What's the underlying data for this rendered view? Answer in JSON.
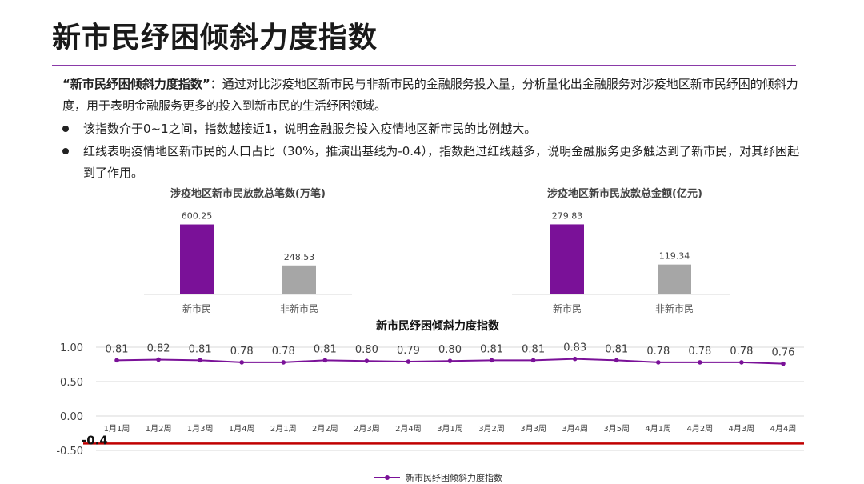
{
  "page": {
    "title": "新市民纾困倾斜力度指数",
    "intro_lead": "“新市民纾困倾斜力度指数”",
    "intro_rest": "：通过对比涉疫地区新市民与非新市民的金融服务投入量，分析量化出金融服务对涉疫地区新市民纾困的倾斜力度，用于表明金融服务更多的投入到新市民的生活纾困领域。",
    "bullets": [
      "该指数介于0~1之间，指数越接近1，说明金融服务投入疫情地区新市民的比例越大。",
      "红线表明疫情地区新市民的人口占比（30%，推演出基线为-0.4），指数超过红线越多，说明金融服务更多触达到了新市民，对其纾困起到了作用。"
    ]
  },
  "colors": {
    "accent_purple": "#7a1198",
    "bar_gray": "#a6a6a6",
    "line_purple": "#7a1198",
    "baseline_red": "#c00000",
    "title_rule": "#8a3aa8"
  },
  "chart_data": [
    {
      "type": "bar",
      "title": "涉疫地区新市民放款总笔数(万笔)",
      "categories": [
        "新市民",
        "非新市民"
      ],
      "values": [
        600.25,
        248.53
      ],
      "value_labels": [
        "600.25",
        "248.53"
      ],
      "ylim": [
        0,
        700
      ],
      "grid": false
    },
    {
      "type": "bar",
      "title": "涉疫地区新市民放款总金额(亿元)",
      "categories": [
        "新市民",
        "非新市民"
      ],
      "values": [
        279.83,
        119.34
      ],
      "value_labels": [
        "279.83",
        "119.34"
      ],
      "ylim": [
        0,
        326
      ],
      "grid": false
    },
    {
      "type": "line",
      "title": "新市民纾困倾斜力度指数",
      "categories": [
        "1月1周",
        "1月2周",
        "1月3周",
        "1月4周",
        "2月1周",
        "2月2周",
        "2月3周",
        "2月4周",
        "3月1周",
        "3月2周",
        "3月3周",
        "3月4周",
        "3月5周",
        "4月1周",
        "4月2周",
        "4月3周",
        "4月4周"
      ],
      "series": [
        {
          "name": "新市民纾困倾斜力度指数",
          "values": [
            0.81,
            0.82,
            0.81,
            0.78,
            0.78,
            0.81,
            0.8,
            0.79,
            0.8,
            0.81,
            0.81,
            0.83,
            0.81,
            0.78,
            0.78,
            0.78,
            0.76
          ],
          "value_labels": [
            "0.81",
            "0.82",
            "0.81",
            "0.78",
            "0.78",
            "0.81",
            "0.80",
            "0.79",
            "0.80",
            "0.81",
            "0.81",
            "0.83",
            "0.81",
            "0.78",
            "0.78",
            "0.78",
            "0.76"
          ]
        }
      ],
      "yticks": [
        "1.00",
        "0.50",
        "0.00",
        "-0.50"
      ],
      "ytick_values": [
        1.0,
        0.5,
        0.0,
        -0.5
      ],
      "ylim": [
        -0.5,
        1.0
      ],
      "baseline": {
        "value": -0.4,
        "label": "-0.4"
      },
      "grid": true,
      "legend_position": "bottom-center"
    }
  ]
}
